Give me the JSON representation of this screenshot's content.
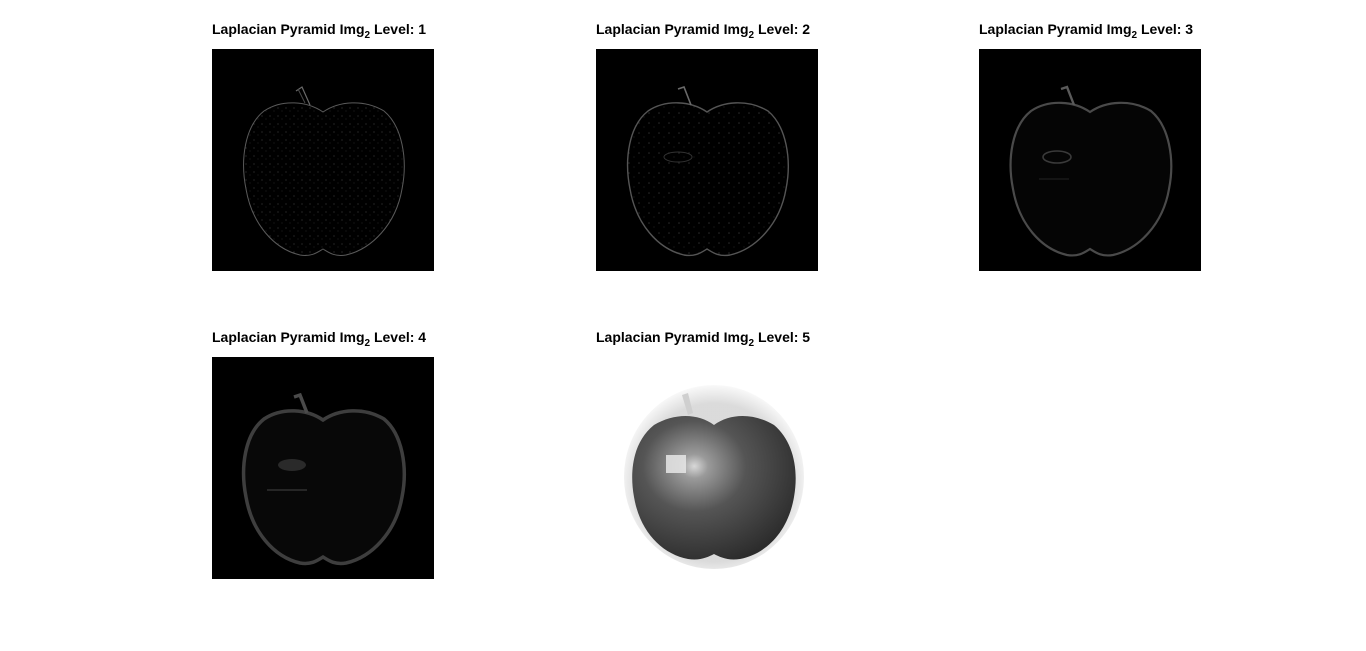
{
  "figure": {
    "panels": [
      {
        "title_prefix": "Laplacian Pyramid Img",
        "title_sub": "2",
        "title_suffix": " Level: 1",
        "icon": "apple-edge-image"
      },
      {
        "title_prefix": "Laplacian Pyramid Img",
        "title_sub": "2",
        "title_suffix": " Level: 2",
        "icon": "apple-edge-image"
      },
      {
        "title_prefix": "Laplacian Pyramid Img",
        "title_sub": "2",
        "title_suffix": " Level: 3",
        "icon": "apple-edge-image"
      },
      {
        "title_prefix": "Laplacian Pyramid Img",
        "title_sub": "2",
        "title_suffix": " Level: 4",
        "icon": "apple-edge-image"
      },
      {
        "title_prefix": "Laplacian Pyramid Img",
        "title_sub": "2",
        "title_suffix": " Level: 5",
        "icon": "apple-grayscale-image"
      }
    ],
    "colors": {
      "background": "#ffffff",
      "image_black": "#000000",
      "edge_gray": "#555555",
      "apple_dark": "#3a3a3a",
      "apple_light": "#eeeeee"
    }
  }
}
